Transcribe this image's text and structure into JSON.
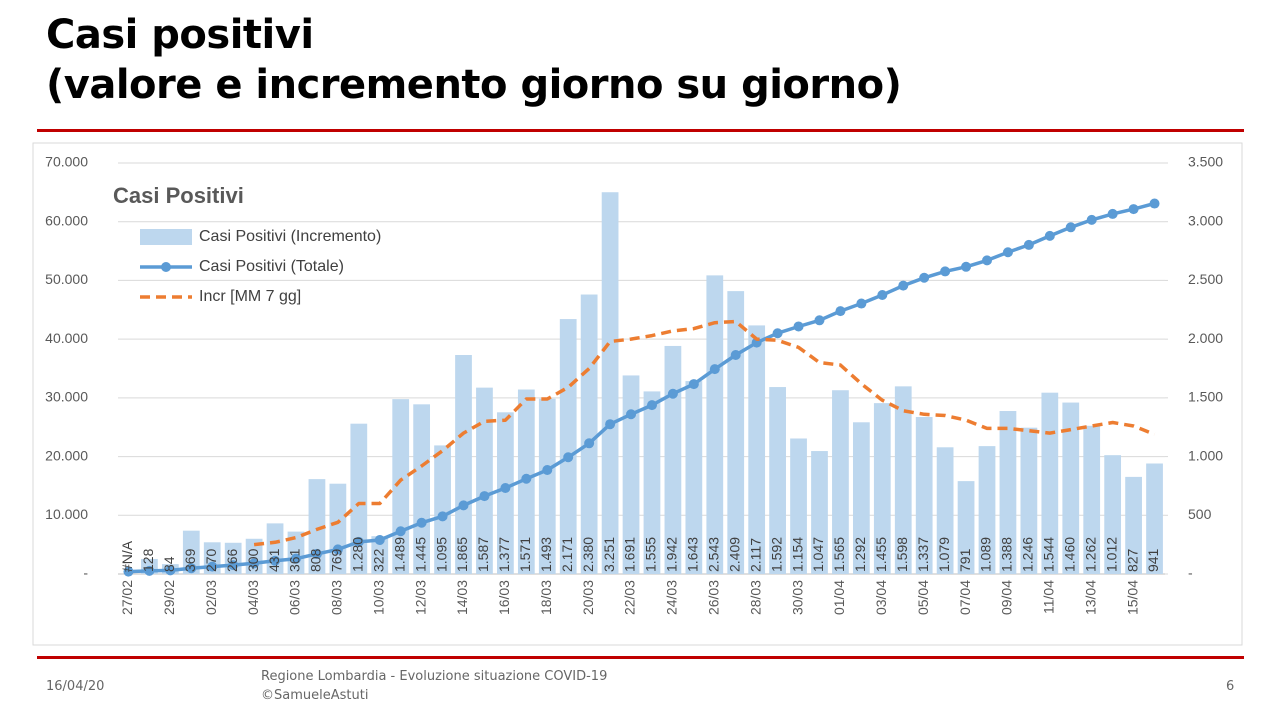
{
  "header": {
    "title_line1": "Casi positivi",
    "title_line2": "(valore e incremento giorno su giorno)"
  },
  "footer": {
    "date": "16/04/20",
    "source_line1": "Regione Lombardia - Evoluzione situazione COVID-19",
    "source_line2": "©SamueleAstuti",
    "page": "6"
  },
  "chart_data": {
    "type": "combo",
    "title": "Casi Positivi",
    "legend": "upper left",
    "grid": true,
    "categories": [
      "27/02",
      null,
      "29/02",
      null,
      "02/03",
      null,
      "04/03",
      null,
      "06/03",
      null,
      "08/03",
      null,
      "10/03",
      null,
      "12/03",
      null,
      "14/03",
      null,
      "16/03",
      null,
      "18/03",
      null,
      "20/03",
      null,
      "22/03",
      null,
      "24/03",
      null,
      "26/03",
      null,
      "28/03",
      null,
      "30/03",
      null,
      "01/04",
      null,
      "03/04",
      null,
      "05/04",
      null,
      "07/04",
      null,
      "09/04",
      null,
      "11/04",
      null,
      "13/04",
      null,
      "15/04",
      null
    ],
    "ylim": [
      0,
      70000
    ],
    "yticks": [
      {
        "value": 0,
        "label": "-"
      },
      {
        "value": 10000,
        "label": "10.000"
      },
      {
        "value": 20000,
        "label": "20.000"
      },
      {
        "value": 30000,
        "label": "30.000"
      },
      {
        "value": 40000,
        "label": "40.000"
      },
      {
        "value": 50000,
        "label": "50.000"
      },
      {
        "value": 60000,
        "label": "60.000"
      },
      {
        "value": 70000,
        "label": "70.000"
      }
    ],
    "y2lim": [
      0,
      3500
    ],
    "y2ticks": [
      {
        "value": 0,
        "label": "-"
      },
      500,
      {
        "value": 1000,
        "label": "1.000"
      },
      {
        "value": 1500,
        "label": "1.500"
      },
      {
        "value": 2000,
        "label": "2.000"
      },
      {
        "value": 2500,
        "label": "2.500"
      },
      {
        "value": 3000,
        "label": "3.000"
      },
      {
        "value": 3500,
        "label": "3.500"
      }
    ],
    "series": [
      {
        "name": "Casi Positivi (Incremento)",
        "type": "bar",
        "axis": "y2",
        "color": "#bdd7ee",
        "values": [
          null,
          128,
          84,
          369,
          270,
          266,
          300,
          431,
          361,
          808,
          769,
          1280,
          322,
          1489,
          1445,
          1095,
          1865,
          1587,
          1377,
          1571,
          1493,
          2171,
          2380,
          3251,
          1691,
          1555,
          1942,
          1643,
          2543,
          2409,
          2117,
          1592,
          1154,
          1047,
          1565,
          1292,
          1455,
          1598,
          1337,
          1079,
          791,
          1089,
          1388,
          1246,
          1544,
          1460,
          1262,
          1012,
          827,
          941
        ],
        "value_labels": [
          "#N/A",
          "128",
          "84",
          "369",
          "270",
          "266",
          "300",
          "431",
          "361",
          "808",
          "769",
          "1.280",
          "322",
          "1.489",
          "1.445",
          "1.095",
          "1.865",
          "1.587",
          "1.377",
          "1.571",
          "1.493",
          "2.171",
          "2.380",
          "3.251",
          "1.691",
          "1.555",
          "1.942",
          "1.643",
          "2.543",
          "2.409",
          "2.117",
          "1.592",
          "1.154",
          "1.047",
          "1.565",
          "1.292",
          "1.455",
          "1.598",
          "1.337",
          "1.079",
          "791",
          "1.089",
          "1.388",
          "1.246",
          "1.544",
          "1.460",
          "1.262",
          "1.012",
          "827",
          "941"
        ]
      },
      {
        "name": "Casi Positivi (Totale)",
        "type": "line",
        "markers": true,
        "color": "#5b9bd5",
        "values": [
          403,
          531,
          615,
          984,
          1254,
          1520,
          1820,
          2251,
          2612,
          3420,
          4189,
          5469,
          5791,
          7280,
          8725,
          9820,
          11685,
          13272,
          14649,
          16220,
          17713,
          19884,
          22264,
          25515,
          27206,
          28761,
          30703,
          32346,
          34889,
          37298,
          39415,
          41007,
          42161,
          43208,
          44773,
          46065,
          47520,
          49118,
          50455,
          51534,
          52325,
          53414,
          54802,
          56048,
          57592,
          59052,
          60314,
          61326,
          62153,
          63094
        ]
      },
      {
        "name": "Incr [MM 7 gg]",
        "type": "line",
        "dashed": true,
        "axis": "y2",
        "color": "#ed7d31",
        "values": [
          null,
          null,
          null,
          null,
          null,
          null,
          250,
          270,
          310,
          380,
          440,
          600,
          600,
          800,
          920,
          1050,
          1200,
          1300,
          1310,
          1490,
          1490,
          1590,
          1750,
          1980,
          2000,
          2030,
          2070,
          2090,
          2140,
          2150,
          2000,
          1990,
          1930,
          1800,
          1780,
          1620,
          1480,
          1390,
          1360,
          1350,
          1310,
          1240,
          1240,
          1220,
          1200,
          1230,
          1260,
          1290,
          1260,
          1190
        ]
      }
    ]
  }
}
